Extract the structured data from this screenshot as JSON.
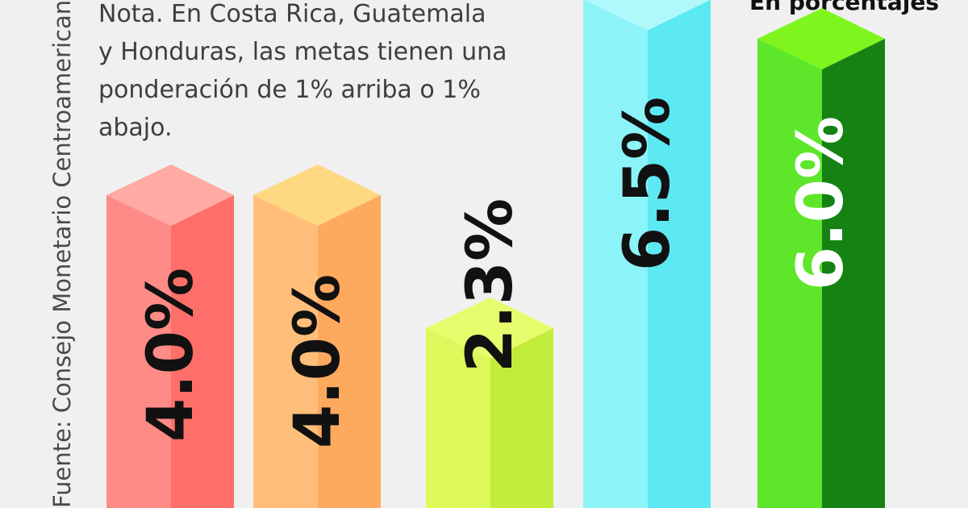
{
  "source": "Fuente: Consejo Monetario Centroamericano",
  "note": "Nota. En Costa Rica, Guatemala\ny Honduras, las metas tienen una\nponderación de 1% arriba o 1%\nabajo.",
  "unit": "En porcentajes",
  "chart_data": {
    "type": "bar",
    "title": "",
    "xlabel": "",
    "ylabel": "",
    "categories": [
      "",
      "",
      "",
      "",
      ""
    ],
    "values": [
      4.0,
      4.0,
      2.3,
      6.5,
      6.0
    ],
    "labels": [
      "4.0%",
      "4.0%",
      "2.3%",
      "6.5%",
      "6.0%"
    ],
    "colors": {
      "front": [
        "#ff8b86",
        "#ffbf7a",
        "#dcf85a",
        "#8cf3f8",
        "#5ee62a"
      ],
      "side": [
        "#ff6f6a",
        "#fda95e",
        "#c2ec3a",
        "#5de9f2",
        "#168214"
      ],
      "top": [
        "#ffaaa3",
        "#ffd882",
        "#e7fc6c",
        "#b0f9fb",
        "#7ef61e"
      ],
      "label": [
        "#111111",
        "#111111",
        "#111111",
        "#111111",
        "#ffffff"
      ]
    }
  }
}
